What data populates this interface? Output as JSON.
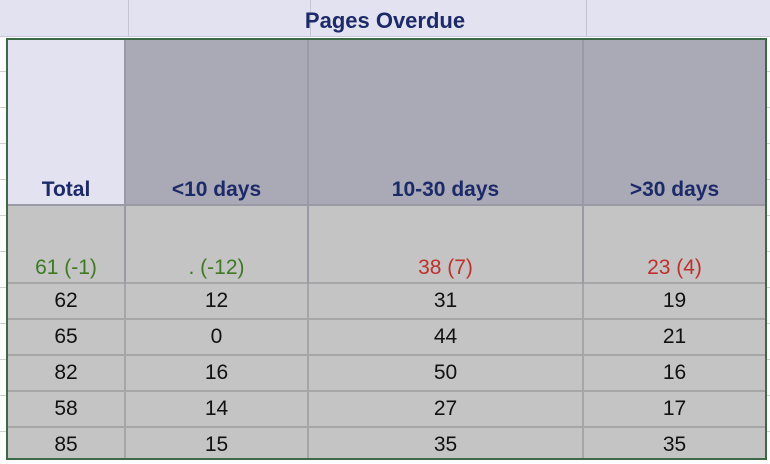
{
  "title": "Pages Overdue",
  "colors": {
    "header_text": "#1d2a6a",
    "ok": "#3d7a22",
    "alert": "#c0302b",
    "frame": "#3a6b46"
  },
  "columns": [
    "Total",
    "<10 days",
    "10-30 days",
    ">30 days"
  ],
  "summary": [
    {
      "text": "61 (-1)",
      "status": "ok"
    },
    {
      "text": ". (-12)",
      "status": "ok"
    },
    {
      "text": "38 (7)",
      "status": "alert"
    },
    {
      "text": "23 (4)",
      "status": "alert"
    }
  ],
  "rows": [
    [
      "62",
      "12",
      "31",
      "19"
    ],
    [
      "65",
      "0",
      "44",
      "21"
    ],
    [
      "82",
      "16",
      "50",
      "16"
    ],
    [
      "58",
      "14",
      "27",
      "17"
    ],
    [
      "85",
      "15",
      "35",
      "35"
    ]
  ]
}
